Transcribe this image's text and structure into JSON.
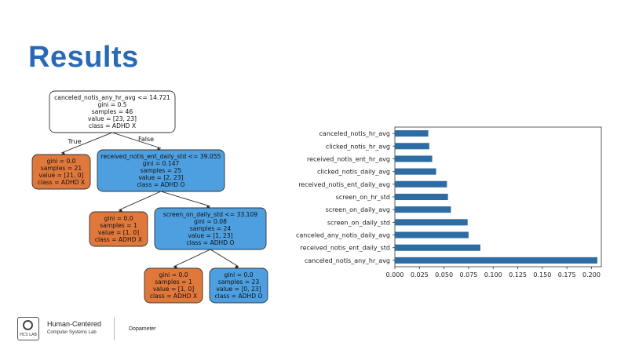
{
  "slide": {
    "title": "Results"
  },
  "tree": {
    "nodes": [
      {
        "id": "n0",
        "color": "#ffffff",
        "lines": [
          "canceled_notis_any_hr_avg <= 14.721",
          "gini = 0.5",
          "samples = 46",
          "value = [23, 23]",
          "class = ADHD X"
        ]
      },
      {
        "id": "n1",
        "color": "#e0783c",
        "lines": [
          "gini = 0.0",
          "samples = 21",
          "value = [21, 0]",
          "class = ADHD X"
        ]
      },
      {
        "id": "n2",
        "color": "#4d9fe0",
        "lines": [
          "received_notis_ent_daily_std <= 39.055",
          "gini = 0.147",
          "samples = 25",
          "value = [2, 23]",
          "class = ADHD O"
        ]
      },
      {
        "id": "n3",
        "color": "#e0783c",
        "lines": [
          "gini = 0.0",
          "samples = 1",
          "value = [1, 0]",
          "class = ADHD X"
        ]
      },
      {
        "id": "n4",
        "color": "#4d9fe0",
        "lines": [
          "screen_on_daily_std <= 33.109",
          "gini = 0.08",
          "samples = 24",
          "value = [1, 23]",
          "class = ADHD O"
        ]
      },
      {
        "id": "n5",
        "color": "#e0783c",
        "lines": [
          "gini = 0.0",
          "samples = 1",
          "value = [1, 0]",
          "class = ADHD X"
        ]
      },
      {
        "id": "n6",
        "color": "#4d9fe0",
        "lines": [
          "gini = 0.0",
          "samples = 23",
          "value = [0, 23]",
          "class = ADHD O"
        ]
      }
    ],
    "edges": [
      {
        "from": "n0",
        "to": "n1",
        "label": "True"
      },
      {
        "from": "n0",
        "to": "n2",
        "label": "False"
      },
      {
        "from": "n2",
        "to": "n3",
        "label": ""
      },
      {
        "from": "n2",
        "to": "n4",
        "label": ""
      },
      {
        "from": "n4",
        "to": "n5",
        "label": ""
      },
      {
        "from": "n4",
        "to": "n6",
        "label": ""
      }
    ]
  },
  "chart_data": {
    "type": "bar",
    "orientation": "horizontal",
    "categories": [
      "canceled_notis_any_hr_avg",
      "received_notis_ent_daily_std",
      "canceled_any_notis_daily_avg",
      "screen_on_daily_std",
      "screen_on_daily_avg",
      "screen_on_hr_std",
      "received_notis_ent_daily_avg",
      "clicked_notis_daily_avg",
      "received_notis_ent_hr_avg",
      "clicked_notis_hr_avg",
      "canceled_notis_hr_avg"
    ],
    "values": [
      0.206,
      0.087,
      0.075,
      0.074,
      0.057,
      0.054,
      0.053,
      0.042,
      0.038,
      0.035,
      0.034
    ],
    "xticks": [
      "0.000",
      "0.025",
      "0.050",
      "0.075",
      "0.100",
      "0.125",
      "0.150",
      "0.175",
      "0.200"
    ],
    "xlim": [
      0,
      0.21
    ],
    "bar_color": "#2e6da4",
    "grid": false,
    "legend": "none"
  },
  "footer": {
    "logo_text": "HCS LAB",
    "lab_name": "Human-Centered",
    "lab_sub": "Computer Systems Lab",
    "project": "Dopameter"
  }
}
